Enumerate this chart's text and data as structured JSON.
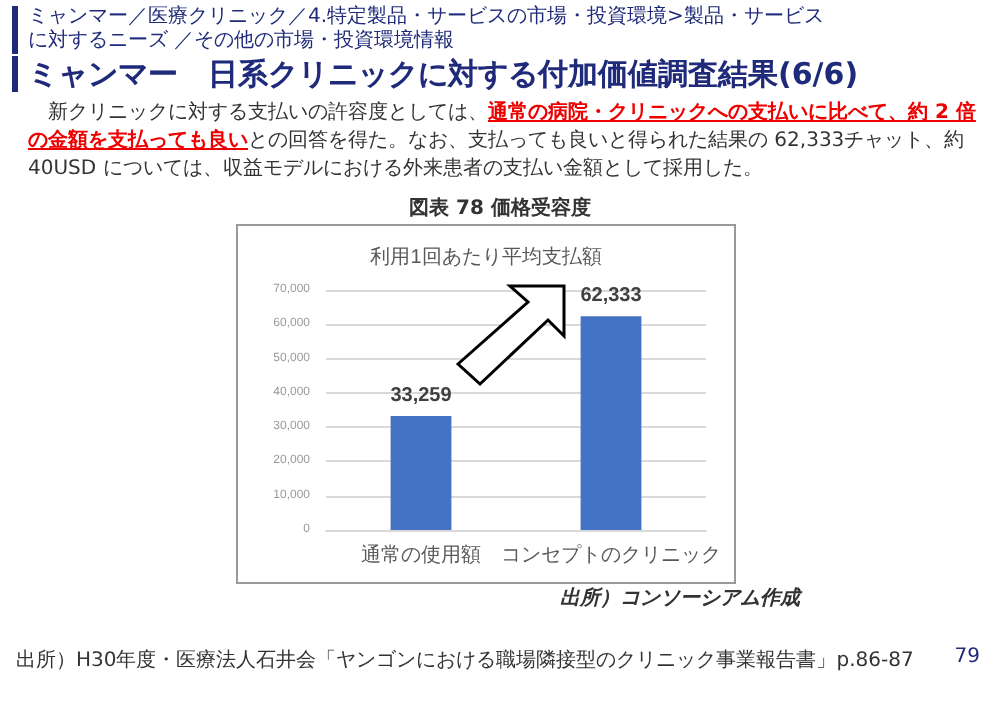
{
  "chart_data": {
    "type": "bar",
    "title": "利用1回あたり平均支払額",
    "categories": [
      "通常の使用額",
      "コンセプトのクリニック"
    ],
    "values": [
      33259,
      62333
    ],
    "color": "#4472c4",
    "ylim": [
      0,
      70000
    ],
    "yticks": [
      0,
      {
        "value": 10000,
        "label": "10,000"
      },
      {
        "value": 20000,
        "label": "20,000"
      },
      {
        "value": 30000,
        "label": "30,000"
      },
      {
        "value": 40000,
        "label": "40,000"
      },
      {
        "value": 50000,
        "label": "50,000"
      },
      {
        "value": 60000,
        "label": "60,000"
      },
      {
        "value": 70000,
        "label": "70,000"
      }
    ],
    "grid": "y",
    "value_labels": [
      "33,259",
      "62,333"
    ],
    "annotations": [
      "ミャンマー／医療クリニック／4.特定製品・サービスの市場・投資環境>製品・サービスに対するニーズ ／その他の市場・投資環境情報",
      "ミャンマー　日系クリニックに対する付加価値調査結果(6/6)",
      "新クリニックに対する支払いの許容度としては、",
      "通常の病院・クリニックへの支払いに比べて、約 2 倍の金額を支払っても良い",
      "との回答を得た。なお、支払っても良いと得られた結果の 62,333チャット、約 40USD については、収益モデルにおける外来患者の支払い金額として採用した。",
      "図表 78 価格受容度",
      "出所）コンソーシアム作成",
      "出所）H30年度・医療法人石井会「ヤンゴンにおける職場隣接型のクリニック事業報告書」p.86-87",
      "79"
    ]
  }
}
